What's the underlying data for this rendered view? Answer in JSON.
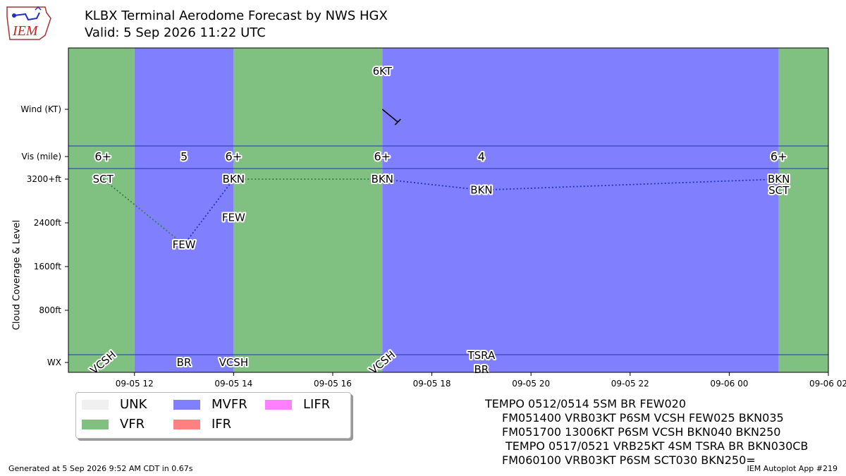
{
  "header": {
    "logo_text": "IEM",
    "title": "KLBX Terminal Aerodome Forecast by NWS HGX",
    "subtitle": "Valid: 5 Sep 2026 11:22 UTC"
  },
  "chart_data": {
    "type": "timeline",
    "colors": {
      "VFR": "#80c080",
      "MVFR": "#8080ff",
      "IFR": "#ff8080",
      "LIFR": "#ff80ff",
      "UNK": "#f0f0f0"
    },
    "x_start": "2026-09-05 10:40",
    "x_end": "2026-09-06 02:00",
    "x_ticks": [
      {
        "t": "2026-09-05 12:00",
        "label": "09-05 12"
      },
      {
        "t": "2026-09-05 14:00",
        "label": "09-05 14"
      },
      {
        "t": "2026-09-05 16:00",
        "label": "09-05 16"
      },
      {
        "t": "2026-09-05 18:00",
        "label": "09-05 18"
      },
      {
        "t": "2026-09-05 20:00",
        "label": "09-05 20"
      },
      {
        "t": "2026-09-05 22:00",
        "label": "09-05 22"
      },
      {
        "t": "2026-09-06 00:00",
        "label": "09-06 00"
      },
      {
        "t": "2026-09-06 02:00",
        "label": "09-06 02"
      }
    ],
    "ylabel": "Cloud Coverage & Level",
    "y_ticks": [
      {
        "v": 800,
        "label": "800ft"
      },
      {
        "v": 1600,
        "label": "1600ft"
      },
      {
        "v": 2400,
        "label": "2400ft"
      },
      {
        "v": 3200,
        "label": "3200+ft"
      }
    ],
    "row_labels": {
      "wind": "Wind (KT)",
      "vis": "Vis (mile)",
      "wx": "WX"
    },
    "category_bands": [
      {
        "start": "2026-09-05 10:40",
        "end": "2026-09-05 12:00",
        "cat": "VFR"
      },
      {
        "start": "2026-09-05 12:00",
        "end": "2026-09-05 14:00",
        "cat": "MVFR"
      },
      {
        "start": "2026-09-05 14:00",
        "end": "2026-09-05 17:00",
        "cat": "VFR"
      },
      {
        "start": "2026-09-05 17:00",
        "end": "2026-09-06 01:00",
        "cat": "MVFR"
      },
      {
        "start": "2026-09-06 01:00",
        "end": "2026-09-06 02:00",
        "cat": "VFR"
      }
    ],
    "wind": [
      {
        "t": "2026-09-05 17:00",
        "label": "6KT",
        "dir": 130,
        "speed": 6
      }
    ],
    "visibility": [
      {
        "t": "2026-09-05 11:22",
        "label": "6+"
      },
      {
        "t": "2026-09-05 13:00",
        "label": "5"
      },
      {
        "t": "2026-09-05 14:00",
        "label": "6+"
      },
      {
        "t": "2026-09-05 17:00",
        "label": "6+"
      },
      {
        "t": "2026-09-05 19:00",
        "label": "4"
      },
      {
        "t": "2026-09-06 01:00",
        "label": "6+"
      }
    ],
    "clouds": [
      {
        "t": "2026-09-05 11:22",
        "label": "SCT",
        "level": 3200
      },
      {
        "t": "2026-09-05 13:00",
        "label": "FEW",
        "level": 2000
      },
      {
        "t": "2026-09-05 14:00",
        "label": "BKN",
        "level": 3200
      },
      {
        "t": "2026-09-05 14:00",
        "label": "FEW",
        "level": 2500
      },
      {
        "t": "2026-09-05 17:00",
        "label": "BKN",
        "level": 3200
      },
      {
        "t": "2026-09-05 19:00",
        "label": "BKN",
        "level": 3000
      },
      {
        "t": "2026-09-06 01:00",
        "label": "BKN",
        "level": 3200
      },
      {
        "t": "2026-09-06 01:00",
        "label": "SCT",
        "level": 3000
      }
    ],
    "cloud_lines": [
      {
        "from": {
          "t": "2026-09-05 11:22",
          "level": 3200
        },
        "to": {
          "t": "2026-09-05 13:00",
          "level": 2000
        },
        "color": "#2e7d4f"
      },
      {
        "from": {
          "t": "2026-09-05 13:00",
          "level": 2000
        },
        "to": {
          "t": "2026-09-05 14:00",
          "level": 3200
        },
        "color": "#2030c0"
      },
      {
        "from": {
          "t": "2026-09-05 14:00",
          "level": 3200
        },
        "to": {
          "t": "2026-09-05 17:00",
          "level": 3200
        },
        "color": "#2e7d4f"
      },
      {
        "from": {
          "t": "2026-09-05 17:00",
          "level": 3200
        },
        "to": {
          "t": "2026-09-05 19:00",
          "level": 3000
        },
        "color": "#2030c0"
      },
      {
        "from": {
          "t": "2026-09-05 19:00",
          "level": 3000
        },
        "to": {
          "t": "2026-09-06 01:00",
          "level": 3200
        },
        "color": "#2030c0"
      }
    ],
    "weather": [
      {
        "t": "2026-09-05 11:22",
        "label": "VCSH",
        "rotated": true
      },
      {
        "t": "2026-09-05 13:00",
        "label": "BR",
        "rotated": false
      },
      {
        "t": "2026-09-05 14:00",
        "label": "VCSH",
        "rotated": false
      },
      {
        "t": "2026-09-05 17:00",
        "label": "VCSH",
        "rotated": true
      },
      {
        "t": "2026-09-05 19:00",
        "label": "TSRA",
        "rotated": false
      },
      {
        "t": "2026-09-05 19:00",
        "label": "BR",
        "rotated": false
      }
    ]
  },
  "legend": [
    {
      "label": "UNK",
      "color": "#f0f0f0"
    },
    {
      "label": "MVFR",
      "color": "#8080ff"
    },
    {
      "label": "LIFR",
      "color": "#ff80ff"
    },
    {
      "label": "VFR",
      "color": "#80c080"
    },
    {
      "label": "IFR",
      "color": "#ff8080"
    }
  ],
  "taf_lines": [
    "TEMPO 0512/0514 5SM BR FEW020",
    "FM051400 VRB03KT P6SM VCSH FEW025 BKN035",
    "FM051700 13006KT P6SM VCSH BKN040 BKN250",
    "TEMPO 0517/0521 VRB25KT 4SM TSRA BR BKN030CB",
    "FM060100 VRB03KT P6SM SCT030 BKN250="
  ],
  "footer": {
    "generated": "Generated at 5 Sep 2026 9:52 AM CDT in 0.67s",
    "app": "IEM Autoplot App #219"
  }
}
